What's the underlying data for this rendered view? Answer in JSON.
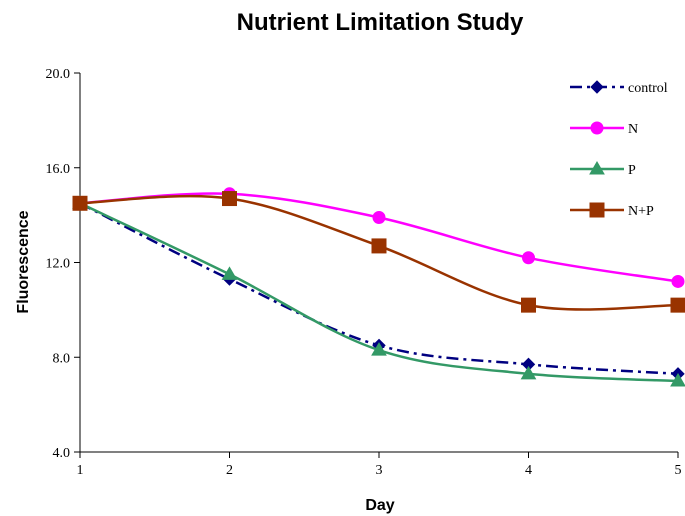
{
  "chart_data": {
    "type": "line",
    "title": "Nutrient Limitation Study",
    "xlabel": "Day",
    "ylabel": "Fluorescence",
    "x": [
      1,
      2,
      3,
      4,
      5
    ],
    "xlim": [
      1,
      5
    ],
    "ylim": [
      4.0,
      20.0
    ],
    "x_ticks": [
      "1",
      "2",
      "3",
      "4",
      "5"
    ],
    "y_ticks": [
      "4.0",
      "8.0",
      "12.0",
      "16.0",
      "20.0"
    ],
    "grid": false,
    "legend_position": "top-right",
    "series": [
      {
        "name": "control",
        "values": [
          14.5,
          11.3,
          8.5,
          7.7,
          7.3
        ],
        "color": "#000080",
        "marker": "diamond",
        "dash": "dash-dot"
      },
      {
        "name": "N",
        "values": [
          14.5,
          14.9,
          13.9,
          12.2,
          11.2
        ],
        "color": "#ff00ff",
        "marker": "circle",
        "dash": "solid"
      },
      {
        "name": "P",
        "values": [
          14.5,
          11.5,
          8.3,
          7.3,
          7.0
        ],
        "color": "#339966",
        "marker": "triangle",
        "dash": "solid"
      },
      {
        "name": "N+P",
        "values": [
          14.5,
          14.7,
          12.7,
          10.2,
          10.2
        ],
        "color": "#993300",
        "marker": "square",
        "dash": "solid"
      }
    ]
  }
}
